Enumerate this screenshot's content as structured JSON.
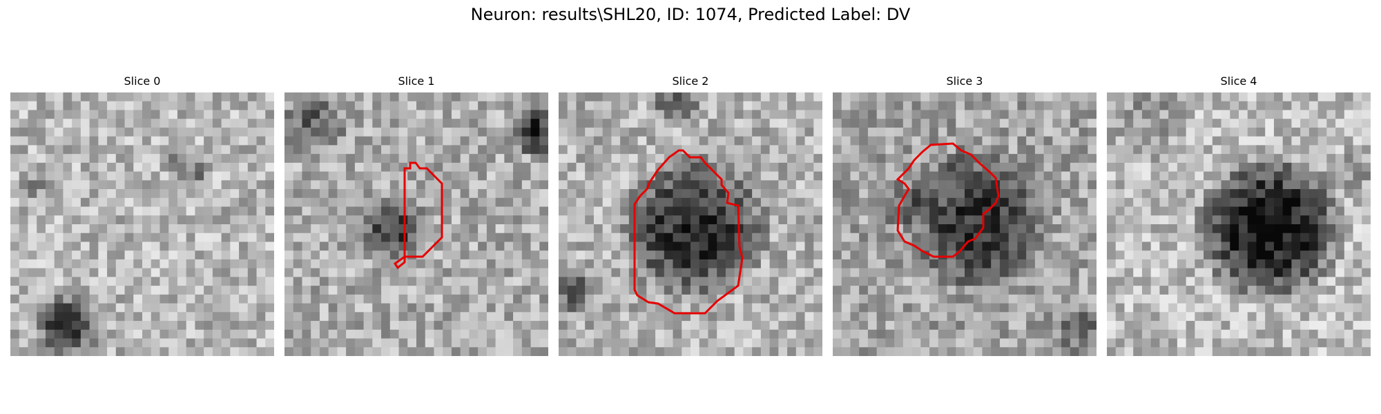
{
  "figure": {
    "suptitle": "Neuron: results\\SHL20, ID: 1074, Predicted Label: DV"
  },
  "colors": {
    "background": "#ffffff",
    "contour": "#e60000",
    "colormap": "gray"
  },
  "panels": [
    {
      "title": "Slice 0",
      "has_contour": false
    },
    {
      "title": "Slice 1",
      "has_contour": true
    },
    {
      "title": "Slice 2",
      "has_contour": true
    },
    {
      "title": "Slice 3",
      "has_contour": true
    },
    {
      "title": "Slice 4",
      "has_contour": false
    }
  ]
}
